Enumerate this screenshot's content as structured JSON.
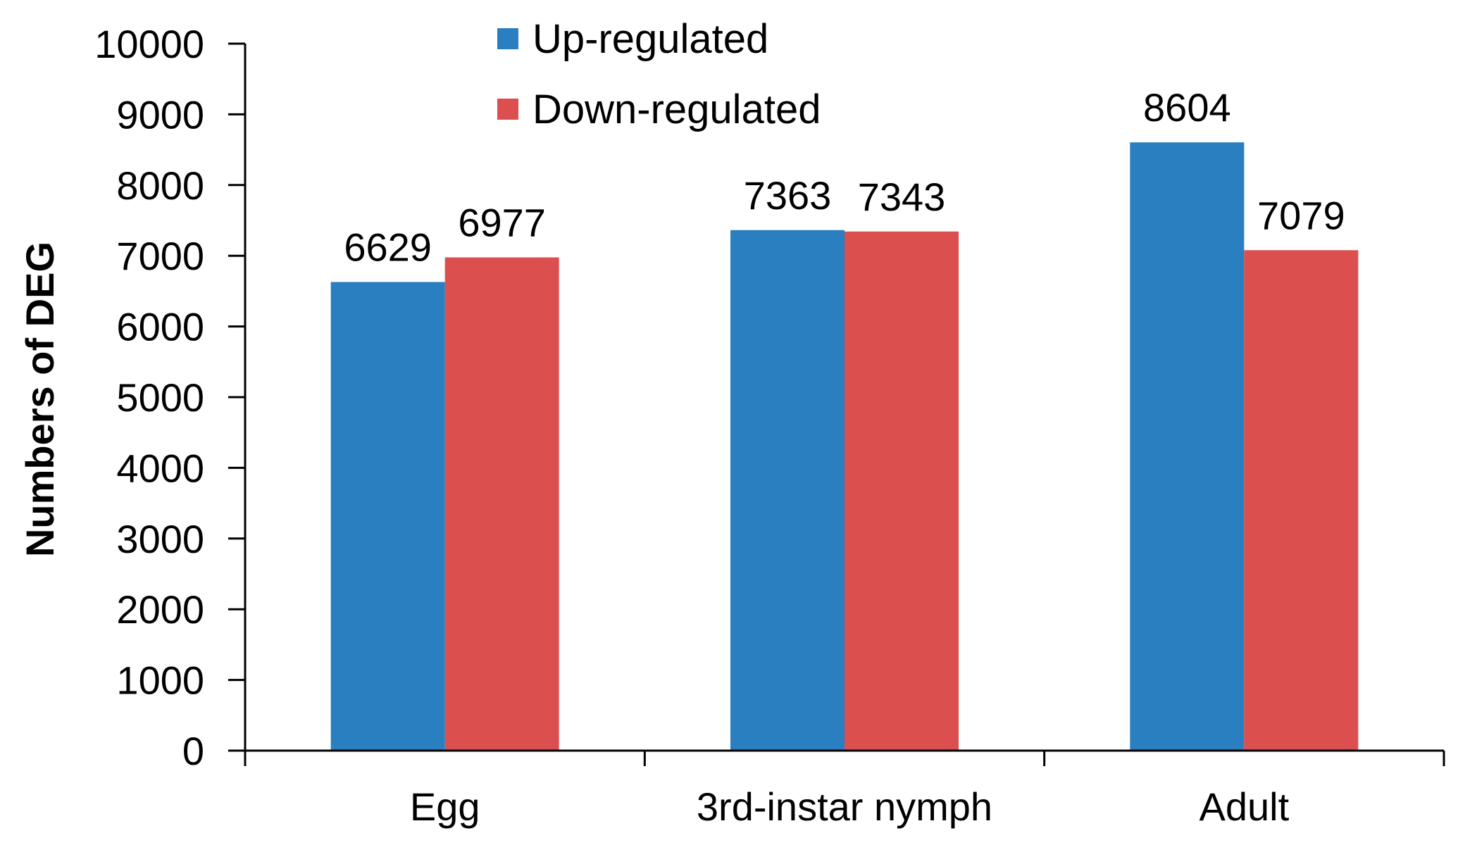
{
  "chart_data": {
    "type": "bar",
    "categories": [
      "Egg",
      "3rd-instar nymph",
      "Adult"
    ],
    "series": [
      {
        "name": "Up-regulated",
        "values": [
          6629,
          7363,
          8604
        ],
        "color": "#2a7fc0"
      },
      {
        "name": "Down-regulated",
        "values": [
          6977,
          7343,
          7079
        ],
        "color": "#dc4f4f"
      }
    ],
    "data_labels": [
      [
        "6629",
        "7363",
        "8604"
      ],
      [
        "6977",
        "7343",
        "7079"
      ]
    ],
    "title": "",
    "xlabel": "",
    "ylabel": "Numbers of DEG",
    "ylim": [
      0,
      10000
    ],
    "yticks": [
      "0",
      "1000",
      "2000",
      "3000",
      "4000",
      "5000",
      "6000",
      "7000",
      "8000",
      "9000",
      "10000"
    ],
    "grid": false,
    "legend_position": "top-center"
  }
}
